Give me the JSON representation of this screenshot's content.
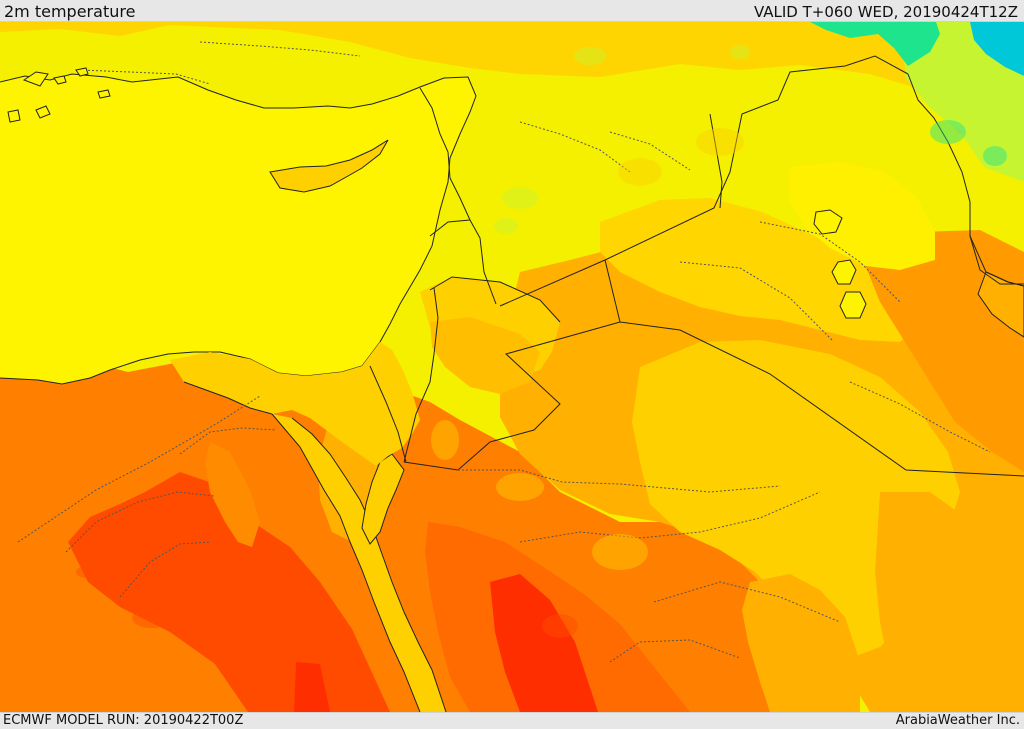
{
  "header": {
    "left_title": "2m temperature",
    "right_title": "VALID T+060 WED, 20190424T12Z"
  },
  "footer": {
    "left_text": "ECMWF MODEL RUN: 20190422T00Z",
    "right_text": "ArabiaWeather Inc."
  },
  "colors": {
    "coldest": "#1ee48e",
    "cool": "#c7f431",
    "mild": "#fff400",
    "warm": "#ffd000",
    "warmer": "#ffb000",
    "hot": "#ff7f00",
    "hottest": "#ff4b00",
    "boundary": "#222222"
  }
}
